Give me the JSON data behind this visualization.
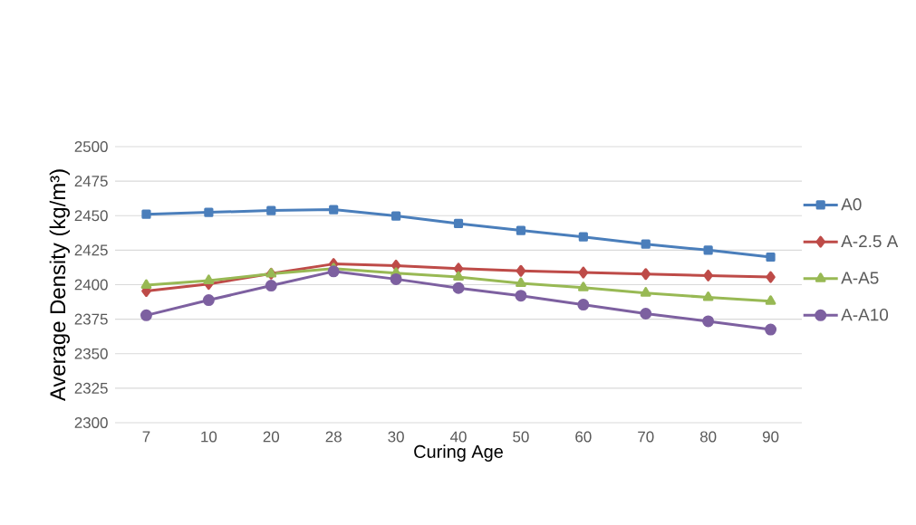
{
  "chart_data": {
    "type": "line",
    "xlabel": "Curing Age",
    "ylabel": "Average Density (kg/m³)",
    "categories": [
      "7",
      "10",
      "20",
      "28",
      "30",
      "40",
      "50",
      "60",
      "70",
      "80",
      "90"
    ],
    "series": [
      {
        "name": "A0",
        "color": "#4a7ebb",
        "marker": "square",
        "values": [
          2451,
          2452.4,
          2453.7,
          2454.4,
          2449.8,
          2444.3,
          2439.3,
          2434.6,
          2429.4,
          2425,
          2420
        ]
      },
      {
        "name": "A-2.5 A",
        "color": "#be4b48",
        "marker": "diamond",
        "values": [
          2395.4,
          2400.5,
          2408,
          2415,
          2413.8,
          2411.6,
          2410,
          2408.8,
          2407.7,
          2406.6,
          2405.5
        ]
      },
      {
        "name": "A-A5",
        "color": "#98b954",
        "marker": "triangle",
        "values": [
          2399.6,
          2403,
          2407.8,
          2411.6,
          2408.3,
          2405.5,
          2401,
          2397.8,
          2394,
          2390.8,
          2388
        ]
      },
      {
        "name": "A-A10",
        "color": "#7d60a0",
        "marker": "circle",
        "values": [
          2377.8,
          2388.8,
          2399.3,
          2409.6,
          2404,
          2397.6,
          2392,
          2385.5,
          2379,
          2373.5,
          2367.5
        ]
      }
    ],
    "ylim": [
      2300,
      2500
    ],
    "yticks": [
      2300,
      2325,
      2350,
      2375,
      2400,
      2425,
      2450,
      2475,
      2500
    ],
    "grid": "y",
    "legend": "right"
  }
}
